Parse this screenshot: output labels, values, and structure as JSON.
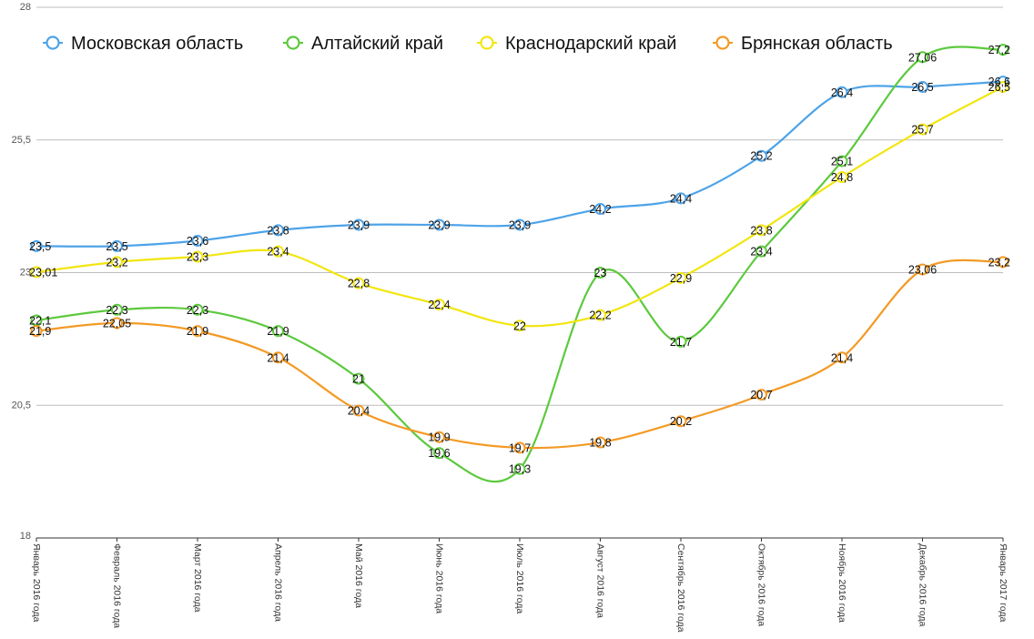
{
  "chart_data": {
    "type": "line",
    "title": "",
    "xlabel": "",
    "ylabel": "",
    "ylim": [
      18,
      28
    ],
    "yticks": [
      "18",
      "20,5",
      "23",
      "25,5",
      "28"
    ],
    "ytick_values": [
      18,
      20.5,
      23,
      25.5,
      28
    ],
    "grid": true,
    "legend_position": "top",
    "categories": [
      "Январь 2016 года",
      "Февраль 2016 года",
      "Март 2016 года",
      "Апрель 2016 года",
      "Май 2016 года",
      "Июнь 2016 года",
      "Июль 2016 года",
      "Август 2016 года",
      "Сентябрь 2016 года",
      "Октябрь 2016 года",
      "Ноябрь 2016 года",
      "Декабрь 2016 года",
      "Январь 2017 года"
    ],
    "series": [
      {
        "name": "Московская область",
        "color": "#4da3e8",
        "values": [
          23.5,
          23.5,
          23.6,
          23.8,
          23.9,
          23.9,
          23.9,
          24.2,
          24.4,
          25.2,
          26.4,
          26.5,
          26.6
        ],
        "labels": [
          "23,5",
          "23,5",
          "23,6",
          "23,8",
          "23,9",
          "23,9",
          "23,9",
          "24,2",
          "24,4",
          "25,2",
          "26,4",
          "26,5",
          "26,6"
        ]
      },
      {
        "name": "Алтайский край",
        "color": "#5cc93d",
        "values": [
          22.1,
          22.3,
          22.3,
          21.9,
          21,
          19.6,
          19.3,
          23,
          21.7,
          23.4,
          25.1,
          27.06,
          27.2
        ],
        "labels": [
          "22,1",
          "22,3",
          "22,3",
          "21,9",
          "21",
          "19,6",
          "19,3",
          "23",
          "21,7",
          "23,4",
          "25,1",
          "27,06",
          "27,2"
        ]
      },
      {
        "name": "Краснодарский край",
        "color": "#f2e60f",
        "values": [
          23.01,
          23.2,
          23.3,
          23.4,
          22.8,
          22.4,
          22,
          22.2,
          22.9,
          23.8,
          24.8,
          25.7,
          26.5
        ],
        "labels": [
          "23,01",
          "23,2",
          "23,3",
          "23,4",
          "22,8",
          "22,4",
          "22",
          "22,2",
          "22,9",
          "23,8",
          "24,8",
          "25,7",
          "26,5"
        ]
      },
      {
        "name": "Брянская область",
        "color": "#f39a25",
        "values": [
          21.9,
          22.05,
          21.9,
          21.4,
          20.4,
          19.9,
          19.7,
          19.8,
          20.2,
          20.7,
          21.4,
          23.06,
          23.2
        ],
        "labels": [
          "21,9",
          "22,05",
          "21,9",
          "21,4",
          "20,4",
          "19,9",
          "19,7",
          "19,8",
          "20,2",
          "20,7",
          "21,4",
          "23,06",
          "23,2"
        ]
      }
    ]
  }
}
